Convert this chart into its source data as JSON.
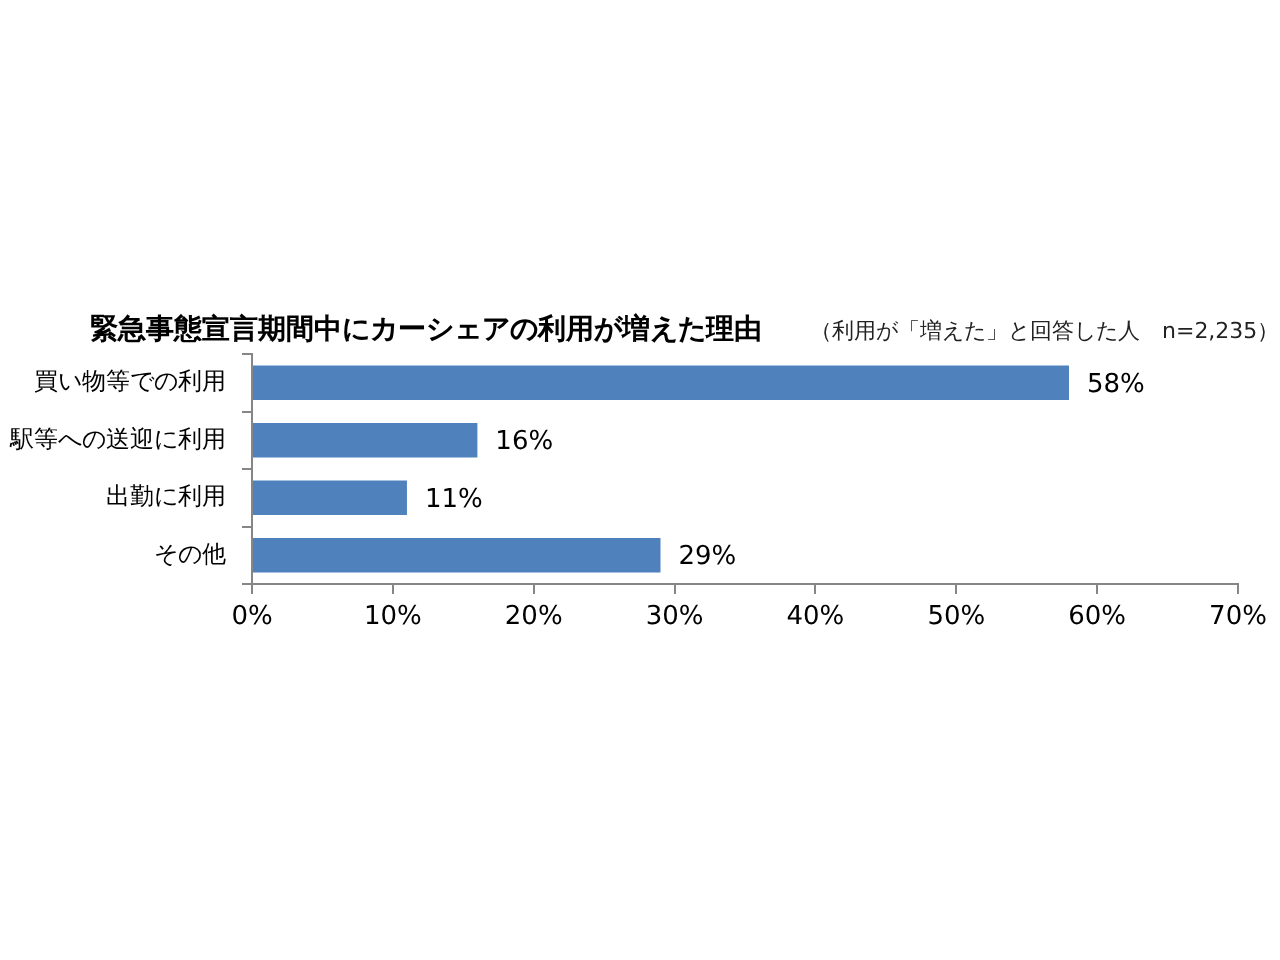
{
  "chart_data": {
    "type": "bar",
    "orientation": "horizontal",
    "title": "緊急事態宣言期間中にカーシェアの利用が増えた理由",
    "subtitle": "（利用が「増えた」と回答した人　n=2,235）",
    "categories": [
      "買い物等での利用",
      "駅等への送迎に利用",
      "出勤に利用",
      "その他"
    ],
    "values": [
      58,
      16,
      11,
      29
    ],
    "color": "#4f81bd",
    "value_labels": [
      "58%",
      "16%",
      "11%",
      "29%"
    ],
    "xlim": [
      0,
      70
    ],
    "xticks": [
      {
        "value": 0,
        "label": "0%"
      },
      {
        "value": 10,
        "label": "10%"
      },
      {
        "value": 20,
        "label": "20%"
      },
      {
        "value": 30,
        "label": "30%"
      },
      {
        "value": 40,
        "label": "40%"
      },
      {
        "value": 50,
        "label": "50%"
      },
      {
        "value": 60,
        "label": "60%"
      },
      {
        "value": 70,
        "label": "70%"
      }
    ],
    "grid": false,
    "legend": false
  }
}
